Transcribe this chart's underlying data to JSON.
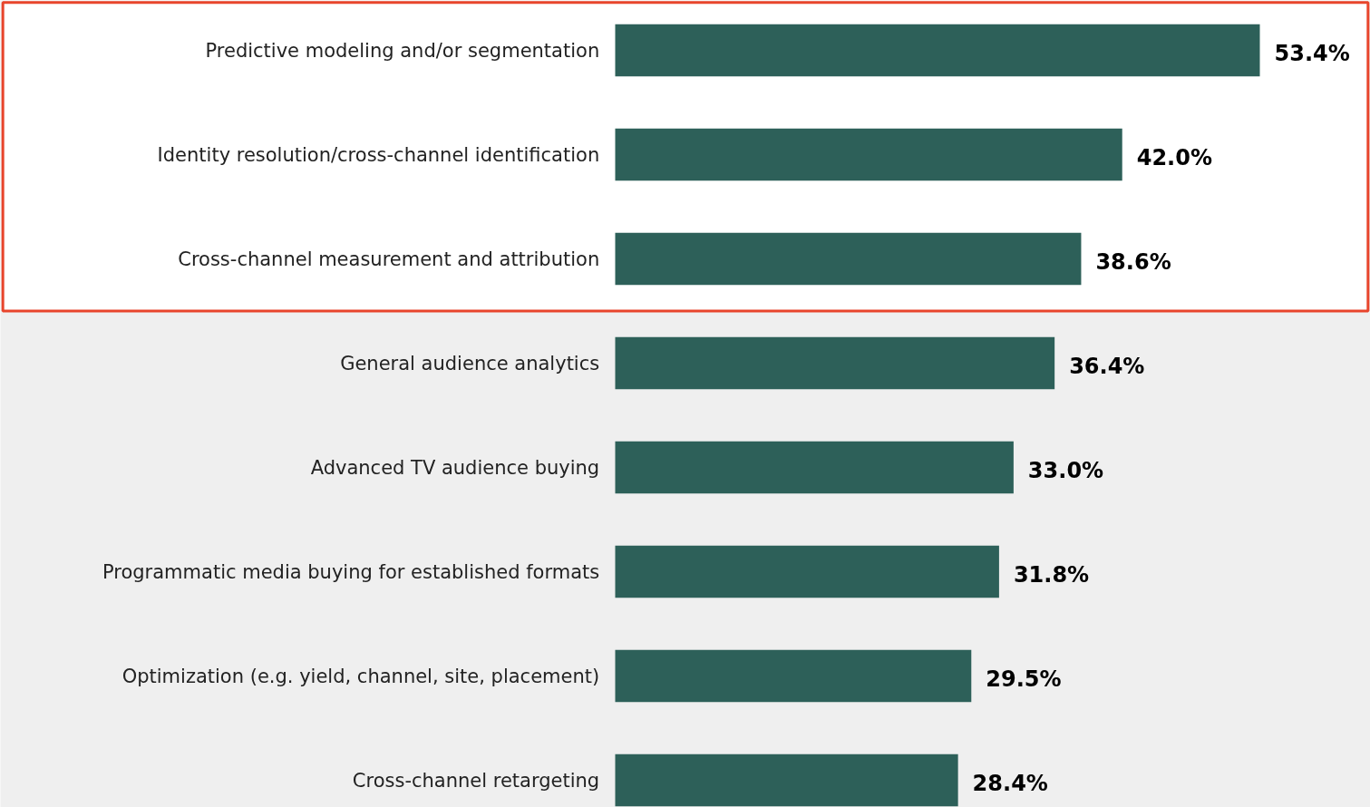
{
  "chart_data": {
    "type": "bar",
    "orientation": "horizontal",
    "categories": [
      "Predictive modeling and/or segmentation",
      "Identity resolution/cross-channel identification",
      "Cross-channel measurement and attribution",
      "General audience analytics",
      "Advanced TV audience buying",
      "Programmatic media buying for established formats",
      "Optimization (e.g. yield, channel, site, placement)",
      "Cross-channel retargeting"
    ],
    "values": [
      53.4,
      42.0,
      38.6,
      36.4,
      33.0,
      31.8,
      29.5,
      28.4
    ],
    "value_labels": [
      "53.4%",
      "42.0%",
      "38.6%",
      "36.4%",
      "33.0%",
      "31.8%",
      "29.5%",
      "28.4%"
    ],
    "color": "#2d6059",
    "bands": [
      {
        "axis": "y",
        "from": "Predictive modeling and/or segmentation",
        "to": "Cross-channel measurement and attribution",
        "color": "#e8452c"
      }
    ]
  }
}
